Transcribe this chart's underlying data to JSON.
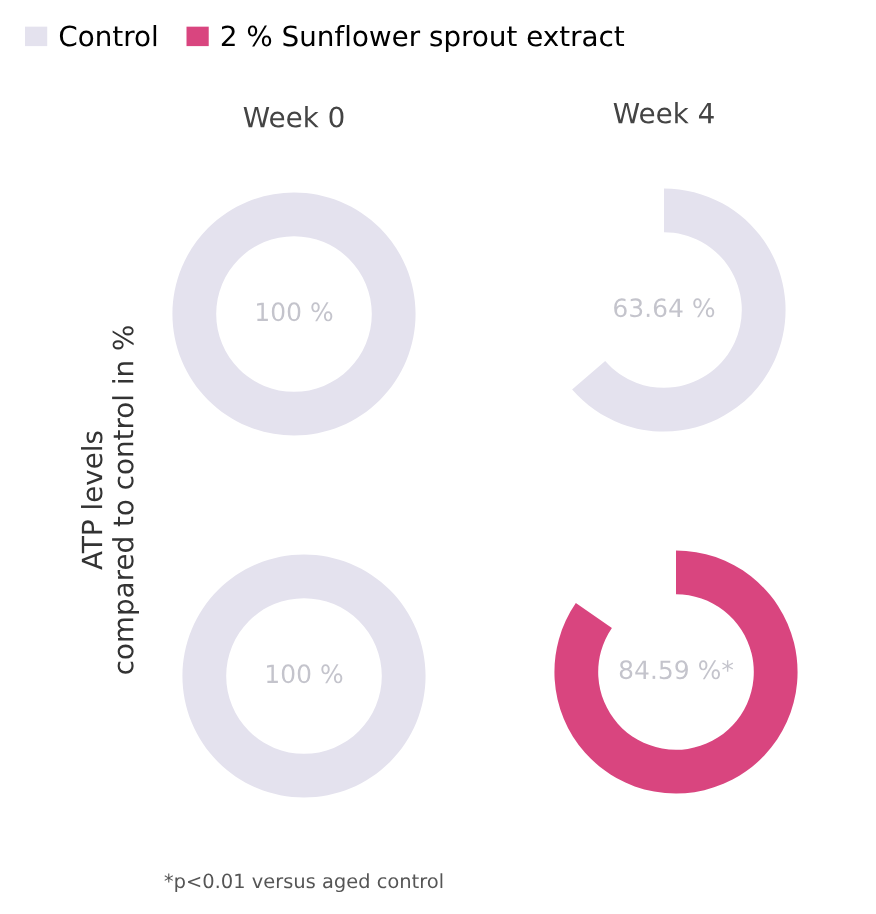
{
  "chart_data": [
    {
      "type": "pie",
      "title": "Week 0",
      "ylabel": "ATP levels\ncompared to control in %",
      "categories": [
        "Control"
      ],
      "values": [
        100
      ],
      "colors": [
        "#e4e2ee"
      ],
      "value_labels": [
        "100 %"
      ],
      "legend": "top left"
    },
    {
      "type": "pie",
      "title": "Week 4",
      "categories": [
        null
      ],
      "values": [
        63.64
      ],
      "colors": [
        "#e4e2ee"
      ],
      "value_labels": [
        "63.64 %"
      ]
    },
    {
      "type": "pie",
      "categories": [
        null
      ],
      "values": [
        100
      ],
      "colors": [
        "#e4e2ee"
      ],
      "value_labels": [
        "100 %"
      ],
      "annotations": [
        "*p<0.01 versus aged control"
      ]
    },
    {
      "type": "pie",
      "categories": [
        "2 % Sunflower sprout extract"
      ],
      "values": [
        84.59
      ],
      "colors": [
        "#d9457f"
      ],
      "value_labels": [
        "84.59 %*"
      ]
    }
  ]
}
